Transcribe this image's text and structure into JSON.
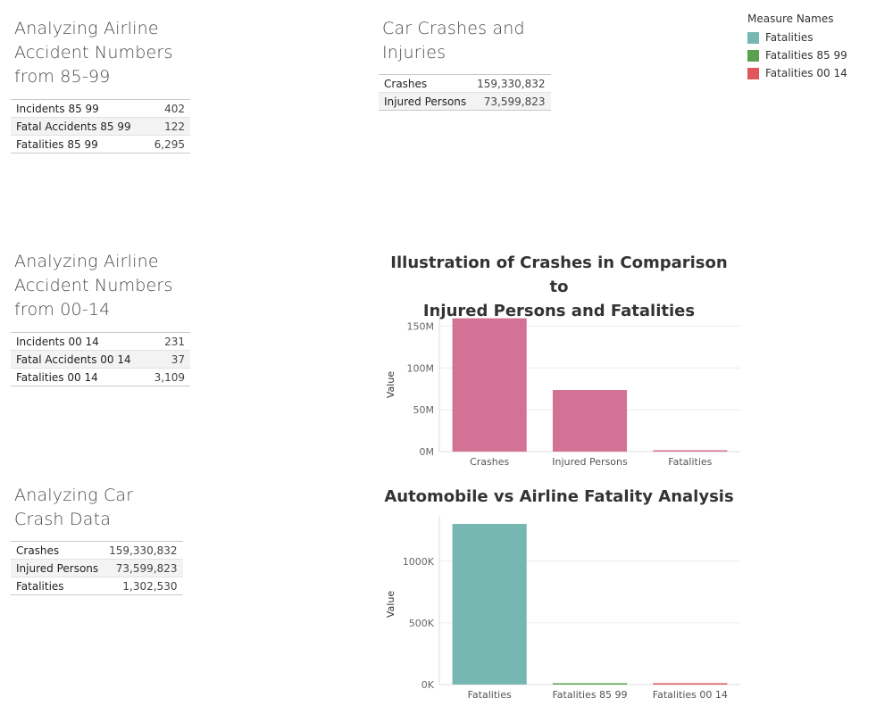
{
  "airline_85_99": {
    "title": "Analyzing Airline\nAccident Numbers\nfrom 85-99",
    "rows": [
      {
        "label": "Incidents 85 99",
        "value": "402"
      },
      {
        "label": "Fatal Accidents 85 99",
        "value": "122"
      },
      {
        "label": "Fatalities 85 99",
        "value": "6,295"
      }
    ]
  },
  "car_crashes_injuries": {
    "title": "Car Crashes and\nInjuries",
    "rows": [
      {
        "label": "Crashes",
        "value": "159,330,832"
      },
      {
        "label": "Injured Persons",
        "value": "73,599,823"
      }
    ]
  },
  "legend": {
    "title": "Measure Names",
    "items": [
      {
        "label": "Fatalities",
        "color": "#76b7b2"
      },
      {
        "label": "Fatalities 85 99",
        "color": "#59a14f"
      },
      {
        "label": "Fatalities 00 14",
        "color": "#e15759"
      }
    ]
  },
  "airline_00_14": {
    "title": "Analyzing Airline\nAccident Numbers\nfrom 00-14",
    "rows": [
      {
        "label": "Incidents 00 14",
        "value": "231"
      },
      {
        "label": "Fatal Accidents 00 14",
        "value": "37"
      },
      {
        "label": "Fatalities 00 14",
        "value": "3,109"
      }
    ]
  },
  "car_crash_data": {
    "title": "Analyzing Car\nCrash Data",
    "rows": [
      {
        "label": "Crashes",
        "value": "159,330,832"
      },
      {
        "label": "Injured Persons",
        "value": "73,599,823"
      },
      {
        "label": "Fatalities",
        "value": "1,302,530"
      }
    ]
  },
  "chart_data": [
    {
      "type": "bar",
      "title": "Illustration of Crashes in Comparison to\nInjured Persons and Fatalities",
      "ylabel": "Value",
      "categories": [
        "Crashes",
        "Injured Persons",
        "Fatalities"
      ],
      "values": [
        159330832,
        73599823,
        1302530
      ],
      "ylim": [
        0,
        160000000
      ],
      "yticks": [
        {
          "value": 0,
          "label": "0M"
        },
        {
          "value": 50000000,
          "label": "50M"
        },
        {
          "value": 100000000,
          "label": "100M"
        },
        {
          "value": 150000000,
          "label": "150M"
        }
      ],
      "colors": [
        "#d37295",
        "#d37295",
        "#d37295"
      ],
      "grid": true
    },
    {
      "type": "bar",
      "title": "Automobile vs Airline Fatality Analysis",
      "ylabel": "Value",
      "categories": [
        "Fatalities",
        "Fatalities 85 99",
        "Fatalities 00 14"
      ],
      "values": [
        1302530,
        6295,
        3109
      ],
      "ylim": [
        0,
        1302530
      ],
      "yticks": [
        {
          "value": 0,
          "label": "0K"
        },
        {
          "value": 500000,
          "label": "500K"
        },
        {
          "value": 1000000,
          "label": "1000K"
        }
      ],
      "colors": [
        "#76b7b2",
        "#59a14f",
        "#e15759"
      ],
      "grid": true
    }
  ]
}
